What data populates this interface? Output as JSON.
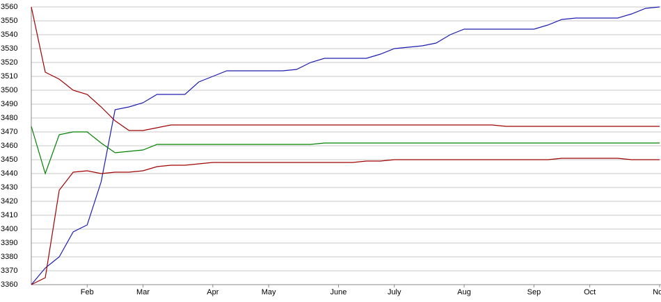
{
  "chart_data": {
    "type": "line",
    "categories": [
      null,
      null,
      null,
      null,
      "Feb",
      null,
      null,
      null,
      "Mar",
      null,
      null,
      null,
      null,
      "Apr",
      null,
      null,
      null,
      "May",
      null,
      null,
      null,
      null,
      "June",
      null,
      null,
      null,
      "July",
      null,
      null,
      null,
      null,
      "Aug",
      null,
      null,
      null,
      null,
      "Sep",
      null,
      null,
      null,
      "Oct",
      null,
      null,
      null,
      null,
      "Nov"
    ],
    "series": [
      {
        "color": "#1c1cb0",
        "values": [
          3360,
          3372,
          3380,
          3398,
          3403,
          3434,
          3486,
          3488,
          3491,
          3497,
          3497,
          3497,
          3506,
          3510,
          3514,
          3514,
          3514,
          3514,
          3514,
          3515,
          3520,
          3523,
          3523,
          3523,
          3523,
          3526,
          3530,
          3531,
          3532,
          3534,
          3540,
          3544,
          3544,
          3544,
          3544,
          3544,
          3544,
          3547,
          3551,
          3552,
          3552,
          3552,
          3552,
          3555,
          3559,
          3560
        ]
      },
      {
        "color": "#a00000",
        "values": [
          3560,
          3513,
          3508,
          3500,
          3497,
          3488,
          3478,
          3471,
          3471,
          3473,
          3475,
          3475,
          3475,
          3475,
          3475,
          3475,
          3475,
          3475,
          3475,
          3475,
          3475,
          3475,
          3475,
          3475,
          3475,
          3475,
          3475,
          3475,
          3475,
          3475,
          3475,
          3475,
          3475,
          3475,
          3474,
          3474,
          3474,
          3474,
          3474,
          3474,
          3474,
          3474,
          3474,
          3474,
          3474,
          3474
        ]
      },
      {
        "color": "#008000",
        "values": [
          3474,
          3440,
          3468,
          3470,
          3470,
          3462,
          3455,
          3456,
          3457,
          3461,
          3461,
          3461,
          3461,
          3461,
          3461,
          3461,
          3461,
          3461,
          3461,
          3461,
          3461,
          3462,
          3462,
          3462,
          3462,
          3462,
          3462,
          3462,
          3462,
          3462,
          3462,
          3462,
          3462,
          3462,
          3462,
          3462,
          3462,
          3462,
          3462,
          3462,
          3462,
          3462,
          3462,
          3462,
          3462,
          3462
        ]
      },
      {
        "color": "#a00000",
        "values": [
          3360,
          3365,
          3428,
          3441,
          3442,
          3440,
          3441,
          3441,
          3442,
          3445,
          3446,
          3446,
          3447,
          3448,
          3448,
          3448,
          3448,
          3448,
          3448,
          3448,
          3448,
          3448,
          3448,
          3448,
          3449,
          3449,
          3450,
          3450,
          3450,
          3450,
          3450,
          3450,
          3450,
          3450,
          3450,
          3450,
          3450,
          3450,
          3451,
          3451,
          3451,
          3451,
          3451,
          3450,
          3450,
          3450
        ]
      }
    ],
    "ylim": [
      3360,
      3560
    ],
    "yticks": [
      3360,
      3370,
      3380,
      3390,
      3400,
      3410,
      3420,
      3430,
      3440,
      3450,
      3460,
      3470,
      3480,
      3490,
      3500,
      3510,
      3520,
      3530,
      3540,
      3550,
      3560
    ],
    "grid": true
  }
}
